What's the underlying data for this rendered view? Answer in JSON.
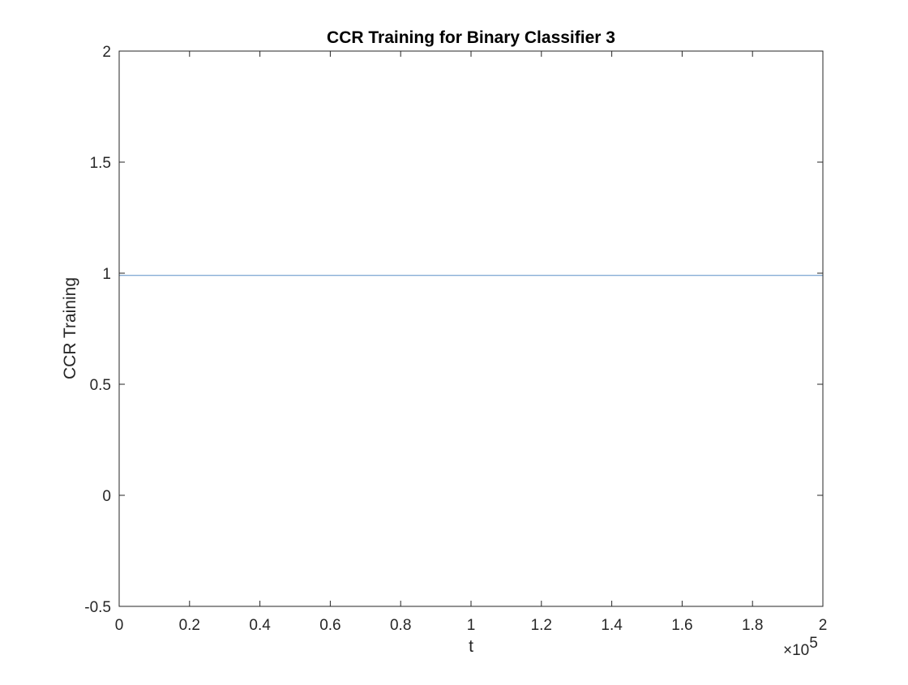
{
  "chart_data": {
    "type": "line",
    "title": "CCR Training for Binary Classifier 3",
    "xlabel": "t",
    "ylabel": "CCR Training",
    "x_exponent_label": "×10",
    "x_exponent_power": "5",
    "xlim": [
      0,
      2
    ],
    "ylim": [
      -0.5,
      2
    ],
    "xticks": [
      0,
      0.2,
      0.4,
      0.6,
      0.8,
      1,
      1.2,
      1.4,
      1.6,
      1.8,
      2
    ],
    "xtick_labels": [
      "0",
      "0.2",
      "0.4",
      "0.6",
      "0.8",
      "1",
      "1.2",
      "1.4",
      "1.6",
      "1.8",
      "2"
    ],
    "yticks": [
      -0.5,
      0,
      0.5,
      1,
      1.5,
      2
    ],
    "ytick_labels": [
      "-0.5",
      "0",
      "0.5",
      "1",
      "1.5",
      "2"
    ],
    "grid": false,
    "series": [
      {
        "color": "#5b8fc7",
        "x": [
          0,
          2
        ],
        "y": [
          0.99,
          0.99
        ]
      }
    ]
  }
}
